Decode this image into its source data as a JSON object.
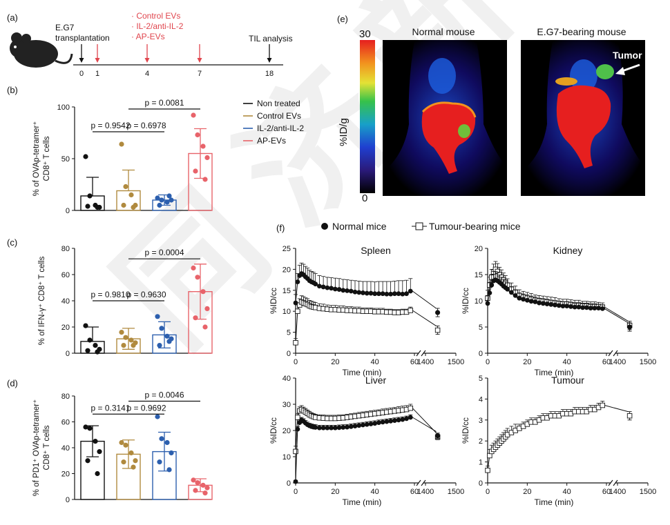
{
  "watermark": "同 济 新 药",
  "panel_a": {
    "label": "(a)",
    "events": [
      {
        "day": 0,
        "label": "E.G7\ntransplantation",
        "color": "#111111"
      },
      {
        "day": 1,
        "label": "",
        "color": "#e0454d"
      },
      {
        "day": 4,
        "label": "",
        "color": "#e0454d"
      },
      {
        "day": 7,
        "label": "",
        "color": "#e0454d"
      },
      {
        "day": 18,
        "label": "TIL analysis",
        "color": "#111111"
      }
    ],
    "ticks": [
      "0",
      "1",
      "4",
      "7",
      "18"
    ],
    "treatments": [
      "· Control EVs",
      "· IL-2/anti-IL-2",
      "· AP-EVs"
    ]
  },
  "legend_bc": {
    "items": [
      {
        "label": "Non treated",
        "color": "#111111"
      },
      {
        "label": "Control EVs",
        "color": "#b08a3e"
      },
      {
        "label": "IL-2/anti-IL-2",
        "color": "#2c5fae"
      },
      {
        "label": "AP-EVs",
        "color": "#e8636a"
      }
    ]
  },
  "chart_data": [
    {
      "id": "b",
      "type": "bar",
      "label": "(b)",
      "ylabel": [
        "% of OVAp-tetramer⁺",
        "CD8⁺ T cells"
      ],
      "ylim": [
        0,
        100
      ],
      "yticks": [
        0,
        50,
        100
      ],
      "categories": [
        "Non treated",
        "Control EVs",
        "IL-2/anti-IL-2",
        "AP-EVs"
      ],
      "means": [
        14,
        19,
        10,
        55
      ],
      "sd": [
        18,
        20,
        5,
        24
      ],
      "points": [
        [
          52,
          14,
          5,
          3,
          4,
          3
        ],
        [
          64,
          23,
          15,
          5,
          5,
          3
        ],
        [
          12,
          10,
          8,
          10,
          5,
          14
        ],
        [
          92,
          73,
          62,
          51,
          38,
          30
        ]
      ],
      "pvalues": [
        {
          "text": "p = 0.9542",
          "from": 0,
          "to": 1,
          "y": 76
        },
        {
          "text": "p = 0.6978",
          "from": 1,
          "to": 2,
          "y": 76
        },
        {
          "text": "p = 0.0081",
          "from": 1,
          "to": 3,
          "y": 98
        }
      ]
    },
    {
      "id": "c",
      "type": "bar",
      "label": "(c)",
      "ylabel": [
        "% of IFN-γ⁺ CD8⁺ T cells"
      ],
      "ylim": [
        0,
        80
      ],
      "yticks": [
        0,
        20,
        40,
        60,
        80
      ],
      "categories": [
        "Non treated",
        "Control EVs",
        "IL-2/anti-IL-2",
        "AP-EVs"
      ],
      "means": [
        9,
        11,
        14,
        47
      ],
      "sd": [
        11,
        8,
        10,
        21
      ],
      "points": [
        [
          21,
          10,
          6,
          3,
          2,
          1
        ],
        [
          16,
          12,
          10,
          8,
          6,
          6
        ],
        [
          28,
          19,
          13,
          11,
          6,
          9
        ],
        [
          65,
          58,
          47,
          34,
          27,
          20
        ]
      ],
      "pvalues": [
        {
          "text": "p = 0.9810",
          "from": 0,
          "to": 1,
          "y": 40
        },
        {
          "text": "p = 0.9630",
          "from": 1,
          "to": 2,
          "y": 40
        },
        {
          "text": "p = 0.0004",
          "from": 1,
          "to": 3,
          "y": 72
        }
      ]
    },
    {
      "id": "d",
      "type": "bar",
      "label": "(d)",
      "ylabel": [
        "% of PD1⁺ OVAp-tetramer⁺",
        "CD8⁺ T cells"
      ],
      "ylim": [
        0,
        80
      ],
      "yticks": [
        0,
        20,
        40,
        60,
        80
      ],
      "categories": [
        "Non treated",
        "Control EVs",
        "IL-2/anti-IL-2",
        "AP-EVs"
      ],
      "means": [
        45,
        35,
        37,
        11
      ],
      "sd": [
        12,
        11,
        15,
        5
      ],
      "points": [
        [
          56,
          55,
          45,
          37,
          30,
          20
        ],
        [
          44,
          42,
          36,
          30,
          29,
          25
        ],
        [
          64,
          47,
          44,
          36,
          29,
          23
        ],
        [
          15,
          13,
          11,
          9,
          7,
          5
        ]
      ],
      "pvalues": [
        {
          "text": "p = 0.3141",
          "from": 0,
          "to": 1,
          "y": 66
        },
        {
          "text": "p = 0.9692",
          "from": 1,
          "to": 2,
          "y": 66
        },
        {
          "text": "p = 0.0046",
          "from": 1,
          "to": 3,
          "y": 76
        }
      ]
    },
    {
      "id": "spleen",
      "type": "line",
      "title": "Spleen",
      "ylabel": "%ID/cc",
      "ylim": [
        0,
        25
      ],
      "yticks": [
        0,
        5,
        10,
        15,
        20,
        25
      ],
      "xticks": [
        0,
        20,
        40,
        60
      ],
      "break_ticks": [
        1400,
        1500
      ],
      "normal": {
        "x": [
          0,
          1,
          2,
          3,
          4,
          5,
          6,
          7,
          8,
          9,
          10,
          12,
          14,
          16,
          18,
          20,
          22,
          24,
          26,
          28,
          30,
          32,
          34,
          36,
          38,
          40,
          42,
          44,
          46,
          48,
          50,
          52,
          54,
          56,
          58
        ],
        "y": [
          12,
          17,
          18.5,
          19,
          18.7,
          18.2,
          17.8,
          17.3,
          17,
          16.8,
          16.5,
          16,
          15.8,
          15.6,
          15.5,
          15.3,
          15.2,
          15,
          14.9,
          14.8,
          14.6,
          14.5,
          14.4,
          14.3,
          14.3,
          14.2,
          14.2,
          14.2,
          14.1,
          14.1,
          14.2,
          14.2,
          14.1,
          14.2,
          14.8
        ],
        "err": [
          2,
          2,
          2.5,
          2.5,
          2.5,
          2.5,
          2.5,
          2.5,
          2.5,
          2.5,
          2.5,
          2.5,
          2.5,
          2.5,
          2.5,
          2.6,
          2.6,
          2.6,
          2.6,
          2.6,
          2.7,
          2.7,
          2.7,
          2.8,
          2.8,
          2.8,
          2.9,
          2.9,
          3,
          3,
          3,
          3.1,
          3.2,
          3.2,
          3
        ],
        "late_x": 1440,
        "late_y": 9.7,
        "late_err": 1
      },
      "tumour": {
        "x": [
          0,
          1,
          2,
          3,
          4,
          5,
          6,
          7,
          8,
          9,
          10,
          12,
          14,
          16,
          18,
          20,
          22,
          24,
          26,
          28,
          30,
          32,
          34,
          36,
          38,
          40,
          42,
          44,
          46,
          48,
          50,
          52,
          54,
          56,
          58
        ],
        "y": [
          2.5,
          10,
          11.5,
          12.2,
          12,
          11.8,
          11.6,
          11.3,
          11.1,
          11,
          10.9,
          10.7,
          10.6,
          10.5,
          10.4,
          10.4,
          10.3,
          10.3,
          10.2,
          10.2,
          10.1,
          10.1,
          10,
          10,
          10,
          9.9,
          9.9,
          9.9,
          9.8,
          9.8,
          9.7,
          9.7,
          9.8,
          9.8,
          10.2
        ],
        "err": [
          1,
          1.5,
          1.5,
          1.5,
          1.5,
          1.4,
          1.4,
          1.3,
          1.3,
          1.2,
          1.2,
          1.1,
          1.1,
          1,
          1,
          1,
          1,
          1,
          0.9,
          0.9,
          0.9,
          0.9,
          0.8,
          0.8,
          0.8,
          0.8,
          0.8,
          0.8,
          0.7,
          0.7,
          0.7,
          0.7,
          0.7,
          0.7,
          0.8
        ],
        "late_x": 1440,
        "late_y": 5.5,
        "late_err": 1
      }
    },
    {
      "id": "kidney",
      "type": "line",
      "title": "Kidney",
      "ylabel": "%ID/cc",
      "ylim": [
        0,
        20
      ],
      "yticks": [
        0,
        5,
        10,
        15,
        20
      ],
      "xticks": [
        0,
        20,
        40,
        60
      ],
      "break_ticks": [
        1400,
        1500
      ],
      "normal": {
        "x": [
          0,
          1,
          2,
          3,
          4,
          5,
          6,
          7,
          8,
          9,
          10,
          12,
          14,
          16,
          18,
          20,
          22,
          24,
          26,
          28,
          30,
          32,
          34,
          36,
          38,
          40,
          42,
          44,
          46,
          48,
          50,
          52,
          54,
          56,
          58
        ],
        "y": [
          9.5,
          11.5,
          13,
          13.8,
          14,
          13.8,
          13.5,
          13.2,
          12.8,
          12.5,
          12.2,
          11.6,
          11,
          10.5,
          10.3,
          10.1,
          9.9,
          9.8,
          9.6,
          9.5,
          9.4,
          9.3,
          9.2,
          9.1,
          9,
          9,
          8.9,
          8.8,
          8.8,
          8.7,
          8.7,
          8.6,
          8.6,
          8.6,
          8.5
        ],
        "err": [
          1.5,
          2,
          2,
          1.8,
          1.6,
          1.5,
          1.4,
          1.3,
          1.3,
          1.2,
          1.2,
          1.1,
          1.1,
          1,
          1,
          1,
          1,
          0.9,
          0.9,
          0.9,
          0.9,
          0.8,
          0.8,
          0.8,
          0.8,
          0.8,
          0.8,
          0.7,
          0.7,
          0.7,
          0.7,
          0.7,
          0.7,
          0.7,
          0.7
        ],
        "late_x": 1440,
        "late_y": 5,
        "late_err": 0.8
      },
      "tumour": {
        "x": [
          0,
          1,
          2,
          3,
          4,
          5,
          6,
          7,
          8,
          9,
          10,
          12,
          14,
          16,
          18,
          20,
          22,
          24,
          26,
          28,
          30,
          32,
          34,
          36,
          38,
          40,
          42,
          44,
          46,
          48,
          50,
          52,
          54,
          56,
          58
        ],
        "y": [
          10.5,
          13,
          14.5,
          15.5,
          16,
          15.6,
          15,
          14.5,
          14,
          13.5,
          13,
          12.2,
          11.6,
          11,
          10.7,
          10.5,
          10.3,
          10.1,
          10,
          9.9,
          9.8,
          9.7,
          9.6,
          9.5,
          9.4,
          9.4,
          9.3,
          9.2,
          9.2,
          9.1,
          9.1,
          9,
          9,
          8.9,
          8.8
        ],
        "err": [
          1.5,
          1.5,
          1.5,
          1.5,
          1.5,
          1.5,
          1.4,
          1.4,
          1.3,
          1.3,
          1.2,
          1.2,
          1.2,
          1.1,
          1.1,
          1.1,
          1.1,
          1,
          1,
          1,
          1,
          1,
          1,
          0.9,
          0.9,
          0.9,
          0.9,
          0.9,
          0.9,
          0.8,
          0.8,
          0.8,
          0.8,
          0.8,
          0.8
        ],
        "late_x": 1440,
        "late_y": 5.3,
        "late_err": 0.8
      }
    },
    {
      "id": "liver",
      "type": "line",
      "title": "Liver",
      "ylabel": "%ID/cc",
      "ylim": [
        0,
        40
      ],
      "yticks": [
        0,
        10,
        20,
        30,
        40
      ],
      "xticks": [
        0,
        20,
        40,
        60
      ],
      "break_ticks": [
        1400,
        1500
      ],
      "normal": {
        "x": [
          0,
          1,
          2,
          3,
          4,
          5,
          6,
          7,
          8,
          9,
          10,
          12,
          14,
          16,
          18,
          20,
          22,
          24,
          26,
          28,
          30,
          32,
          34,
          36,
          38,
          40,
          42,
          44,
          46,
          48,
          50,
          52,
          54,
          56,
          58
        ],
        "y": [
          0.5,
          20.5,
          23,
          24,
          23.5,
          22.8,
          22.2,
          21.8,
          21.5,
          21.3,
          21.2,
          21,
          21,
          21,
          21,
          21,
          21.1,
          21.2,
          21.3,
          21.5,
          21.7,
          21.9,
          22.1,
          22.3,
          22.5,
          22.7,
          23,
          23.2,
          23.4,
          23.6,
          23.8,
          24,
          24.2,
          24.5,
          25
        ],
        "err": [
          0.5,
          1,
          1,
          1,
          1,
          1,
          1,
          1,
          1,
          1,
          1,
          1,
          1,
          1,
          1,
          1,
          1,
          1,
          1,
          1,
          1,
          1,
          1,
          1,
          1,
          1,
          1,
          1,
          1,
          1,
          1,
          1,
          1,
          1,
          1
        ],
        "late_x": 1440,
        "late_y": 18,
        "late_err": 1
      },
      "tumour": {
        "x": [
          0,
          1,
          2,
          3,
          4,
          5,
          6,
          7,
          8,
          9,
          10,
          12,
          14,
          16,
          18,
          20,
          22,
          24,
          26,
          28,
          30,
          32,
          34,
          36,
          38,
          40,
          42,
          44,
          46,
          48,
          50,
          52,
          54,
          56,
          58
        ],
        "y": [
          12,
          25,
          27.5,
          28,
          27.5,
          27,
          26.5,
          26,
          25.6,
          25.3,
          25,
          24.8,
          24.7,
          24.6,
          24.6,
          24.6,
          24.7,
          24.8,
          25,
          25.2,
          25.4,
          25.6,
          25.8,
          26,
          26.2,
          26.4,
          26.6,
          26.8,
          27,
          27.2,
          27.4,
          27.6,
          27.8,
          28,
          28.5
        ],
        "err": [
          2,
          1.5,
          1.5,
          1.5,
          1.4,
          1.4,
          1.3,
          1.3,
          1.2,
          1.2,
          1.2,
          1.2,
          1.2,
          1.2,
          1.2,
          1.2,
          1.2,
          1.2,
          1.2,
          1.2,
          1.2,
          1.3,
          1.3,
          1.3,
          1.3,
          1.3,
          1.3,
          1.4,
          1.4,
          1.4,
          1.4,
          1.5,
          1.5,
          1.5,
          1.5
        ],
        "late_x": 1440,
        "late_y": 17.5,
        "late_err": 1
      }
    },
    {
      "id": "tumour",
      "type": "line",
      "title": "Tumour",
      "ylabel": "%ID/cc",
      "ylim": [
        0,
        5
      ],
      "yticks": [
        0,
        1,
        2,
        3,
        4,
        5
      ],
      "xticks": [
        0,
        20,
        40,
        60
      ],
      "break_ticks": [
        1400,
        1500
      ],
      "tumour": {
        "x": [
          0,
          1,
          2,
          3,
          4,
          5,
          6,
          7,
          8,
          9,
          10,
          12,
          14,
          16,
          18,
          20,
          22,
          24,
          26,
          28,
          30,
          32,
          34,
          36,
          38,
          40,
          42,
          44,
          46,
          48,
          50,
          52,
          54,
          56,
          58
        ],
        "y": [
          0.6,
          1.3,
          1.5,
          1.6,
          1.7,
          1.8,
          1.9,
          2,
          2.1,
          2.2,
          2.3,
          2.4,
          2.5,
          2.6,
          2.7,
          2.8,
          2.9,
          2.9,
          3,
          3.1,
          3.1,
          3.2,
          3.2,
          3.2,
          3.3,
          3.3,
          3.3,
          3.4,
          3.4,
          3.4,
          3.4,
          3.5,
          3.5,
          3.6,
          3.7
        ],
        "err": [
          0.2,
          0.3,
          0.3,
          0.3,
          0.3,
          0.3,
          0.3,
          0.3,
          0.3,
          0.3,
          0.3,
          0.3,
          0.3,
          0.2,
          0.2,
          0.2,
          0.2,
          0.2,
          0.2,
          0.2,
          0.2,
          0.2,
          0.2,
          0.2,
          0.2,
          0.2,
          0.2,
          0.2,
          0.2,
          0.2,
          0.2,
          0.2,
          0.2,
          0.2,
          0.2
        ],
        "late_x": 1440,
        "late_y": 3.2,
        "late_err": 0.2
      }
    }
  ],
  "panel_e": {
    "label": "(e)",
    "scale_max": "30",
    "scale_min": "0",
    "scale_label": "%ID/g",
    "titles": [
      "Normal mouse",
      "E.G7-bearing mouse"
    ],
    "tumor_label": "Tumor"
  },
  "panel_f": {
    "label": "(f)",
    "legend": [
      "Normal mice",
      "Tumour-bearing mice"
    ],
    "xlabel": "Time (min)"
  }
}
